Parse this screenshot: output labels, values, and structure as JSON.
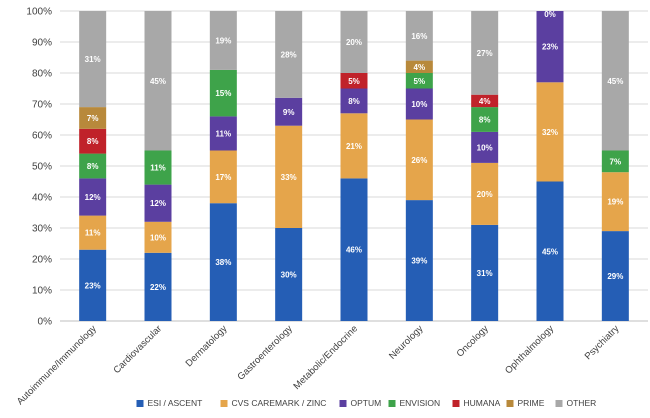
{
  "chart_data": {
    "type": "bar",
    "stacked": true,
    "title": "",
    "xlabel": "",
    "ylabel": "",
    "ylim": [
      0,
      100
    ],
    "yticks": [
      "0%",
      "10%",
      "20%",
      "30%",
      "40%",
      "50%",
      "60%",
      "70%",
      "80%",
      "90%",
      "100%"
    ],
    "grid": true,
    "legend_position": "bottom",
    "categories": [
      "Autoimmune/Immunology",
      "Cardiovascular",
      "Dermatology",
      "Gastroenterology",
      "Metabolic/Endocrine",
      "Neurology",
      "Oncology",
      "Ophthalmology",
      "Psychiatry"
    ],
    "series": [
      {
        "name": "ESI / ASCENT",
        "color": "#255eb5",
        "label_color": "#ffffff",
        "values": [
          23,
          22,
          38,
          30,
          46,
          39,
          31,
          45,
          29
        ],
        "labels": [
          "23%",
          "22%",
          "38%",
          "30%",
          "46%",
          "39%",
          "31%",
          "45%",
          "29%"
        ]
      },
      {
        "name": "CVS CAREMARK / ZINC",
        "color": "#e5a54b",
        "label_color": "#ffffff",
        "values": [
          11,
          10,
          17,
          33,
          21,
          26,
          20,
          32,
          19
        ],
        "labels": [
          "11%",
          "10%",
          "17%",
          "33%",
          "21%",
          "26%",
          "20%",
          "32%",
          "19%"
        ]
      },
      {
        "name": "OPTUM",
        "color": "#5b3fa0",
        "label_color": "#ffffff",
        "values": [
          12,
          12,
          11,
          9,
          8,
          10,
          10,
          23,
          0
        ],
        "labels": [
          "12%",
          "12%",
          "11%",
          "9%",
          "8%",
          "10%",
          "10%",
          "23%",
          ""
        ]
      },
      {
        "name": "ENVISION",
        "color": "#3ea34a",
        "label_color": "#ffffff",
        "values": [
          8,
          11,
          15,
          0,
          0,
          5,
          8,
          0,
          7
        ],
        "labels": [
          "8%",
          "11%",
          "15%",
          "",
          "",
          "5%",
          "8%",
          "",
          "7%"
        ]
      },
      {
        "name": "HUMANA",
        "color": "#c0222a",
        "label_color": "#ffffff",
        "values": [
          8,
          0,
          0,
          0,
          5,
          0,
          4,
          0,
          0
        ],
        "labels": [
          "8%",
          "",
          "",
          "",
          "5%",
          "",
          "4%",
          "",
          ""
        ]
      },
      {
        "name": "PRIME",
        "color": "#b8893b",
        "label_color": "#ffffff",
        "values": [
          7,
          0,
          0,
          0,
          0,
          4,
          0,
          0,
          0
        ],
        "labels": [
          "7%",
          "",
          "",
          "",
          "",
          "4%",
          "",
          "",
          ""
        ]
      },
      {
        "name": "OTHER",
        "color": "#a8a8a8",
        "label_color": "#ffffff",
        "values": [
          31,
          45,
          19,
          28,
          20,
          16,
          27,
          0,
          45
        ],
        "labels": [
          "31%",
          "45%",
          "19%",
          "28%",
          "20%",
          "16%",
          "27%",
          "0%",
          "45%"
        ]
      }
    ]
  }
}
